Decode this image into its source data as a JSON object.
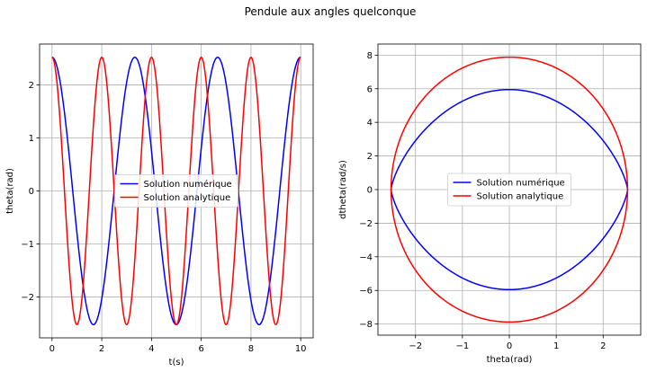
{
  "figure": {
    "suptitle": "Pendule aux angles quelconque"
  },
  "chart_data": [
    {
      "type": "line",
      "xlabel": "t(s)",
      "ylabel": "theta(rad)",
      "xlim": [
        -0.5,
        10.5
      ],
      "ylim": [
        -2.77,
        2.77
      ],
      "xticks": [
        0,
        2,
        4,
        6,
        8,
        10
      ],
      "xtick_labels": [
        "0",
        "2",
        "4",
        "6",
        "8",
        "10"
      ],
      "yticks": [
        -2,
        -1,
        0,
        1,
        2
      ],
      "ytick_labels": [
        "−2",
        "−1",
        "0",
        "1",
        "2"
      ],
      "grid": true,
      "legend": "center",
      "series": [
        {
          "name": "Solution numérique",
          "color": "#0000ff",
          "func": "cos",
          "amplitude": 2.52,
          "period": 3.33,
          "t_range": [
            0,
            10
          ]
        },
        {
          "name": "Solution analytique",
          "color": "#ff0000",
          "func": "cos",
          "amplitude": 2.52,
          "period": 2.0,
          "t_range": [
            0,
            10
          ]
        }
      ]
    },
    {
      "type": "line",
      "xlabel": "theta(rad)",
      "ylabel": "dtheta(rad/s)",
      "xlim": [
        -2.8,
        2.8
      ],
      "ylim": [
        -8.66,
        8.66
      ],
      "xticks": [
        -2,
        -1,
        0,
        1,
        2
      ],
      "xtick_labels": [
        "−2",
        "−1",
        "0",
        "1",
        "2"
      ],
      "yticks": [
        -8,
        -6,
        -4,
        -2,
        0,
        2,
        4,
        6,
        8
      ],
      "ytick_labels": [
        "−8",
        "−6",
        "−4",
        "−2",
        "0",
        "2",
        "4",
        "6",
        "8"
      ],
      "grid": true,
      "legend": "center",
      "series": [
        {
          "name": "Solution numérique",
          "color": "#0000ff",
          "curve": "pendulum_separatrix_like",
          "theta_max": 2.52,
          "dtheta_max": 5.95
        },
        {
          "name": "Solution analytique",
          "color": "#ff0000",
          "curve": "ellipse",
          "theta_max": 2.52,
          "dtheta_max": 7.88
        }
      ]
    }
  ]
}
